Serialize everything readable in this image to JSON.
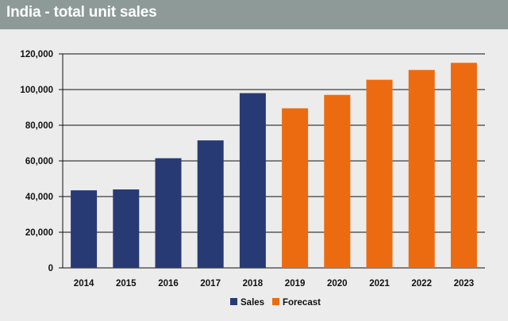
{
  "title": "India - total unit sales",
  "colors": {
    "sales": "#283a74",
    "forecast": "#ec6b11",
    "title_bar": "#8e9a98",
    "background": "#ececec"
  },
  "chart_data": {
    "type": "bar",
    "title": "India - total unit sales",
    "xlabel": "",
    "ylabel": "",
    "categories": [
      "2014",
      "2015",
      "2016",
      "2017",
      "2018",
      "2019",
      "2020",
      "2021",
      "2022",
      "2023"
    ],
    "series": [
      {
        "name": "Sales",
        "values": [
          43500,
          44000,
          61500,
          71500,
          98000,
          null,
          null,
          null,
          null,
          null
        ]
      },
      {
        "name": "Forecast",
        "values": [
          null,
          null,
          null,
          null,
          null,
          89500,
          97000,
          105500,
          111000,
          115000
        ]
      }
    ],
    "ylim": [
      0,
      120000
    ],
    "yticks": [
      0,
      20000,
      40000,
      60000,
      80000,
      100000,
      120000
    ],
    "ytick_labels": [
      "0",
      "20,000",
      "40,000",
      "60,000",
      "80,000",
      "100,000",
      "120,000"
    ],
    "grid": true,
    "legend": "bottom-center"
  }
}
